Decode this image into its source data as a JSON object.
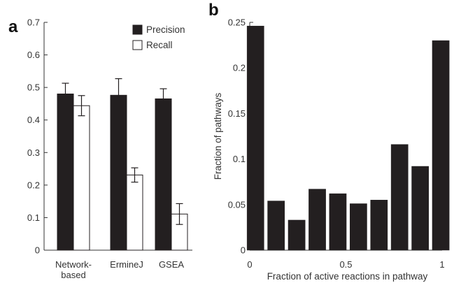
{
  "chart_data": [
    {
      "panel": "a",
      "type": "bar",
      "categories": [
        [
          "Network-",
          "based"
        ],
        [
          "ErmineJ"
        ],
        [
          "GSEA"
        ]
      ],
      "series": [
        {
          "name": "Precision",
          "values": [
            0.48,
            0.476,
            0.465
          ],
          "errors": [
            0.033,
            0.051,
            0.031
          ],
          "color": "#231f20"
        },
        {
          "name": "Recall",
          "values": [
            0.444,
            0.231,
            0.111
          ],
          "errors": [
            0.031,
            0.022,
            0.032
          ],
          "color": "#ffffff"
        }
      ],
      "ylim": [
        0,
        0.7
      ],
      "yticks": [
        "0",
        "0.1",
        "0.2",
        "0.3",
        "0.4",
        "0.5",
        "0.6",
        "0.7"
      ],
      "legend_position": "top-right",
      "grid": false
    },
    {
      "panel": "b",
      "type": "bar",
      "x": [
        0.03,
        0.137,
        0.244,
        0.351,
        0.458,
        0.565,
        0.672,
        0.779,
        0.886,
        0.993
      ],
      "values": [
        0.246,
        0.054,
        0.033,
        0.067,
        0.062,
        0.051,
        0.055,
        0.116,
        0.092,
        0.23
      ],
      "color": "#231f20",
      "xlabel": "Fraction of active reactions in pathway",
      "ylabel": "Fraction of pathways",
      "xlim": [
        0,
        1
      ],
      "xticks": [
        "0",
        "0.5",
        "1"
      ],
      "ylim": [
        0,
        0.25
      ],
      "yticks": [
        "0",
        "0.05",
        "0.1",
        "0.15",
        "0.2",
        "0.25"
      ],
      "grid": false
    }
  ]
}
